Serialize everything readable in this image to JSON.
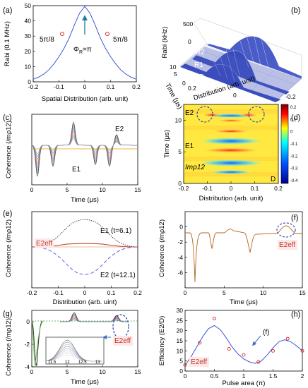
{
  "chart_data": [
    {
      "panel": "(a)",
      "type": "line",
      "ylabel": "Rabi (0.1 MHz)",
      "xlabel": "Spatial Distribution (arb. unit)",
      "xlim": [
        -0.2,
        0.2
      ],
      "ylim": [
        0,
        50
      ],
      "xticks": [
        "-0.2",
        "-0.1",
        "0",
        "0.1",
        "0.2"
      ],
      "yticks": [
        "0",
        "10",
        "20",
        "30",
        "40",
        "50"
      ],
      "series": [
        {
          "x": [
            -0.2,
            -0.18,
            -0.16,
            -0.14,
            -0.12,
            -0.1,
            -0.08,
            -0.06,
            -0.04,
            -0.02,
            0,
            0.02,
            0.04,
            0.06,
            0.08,
            0.1,
            0.12,
            0.14,
            0.16,
            0.18,
            0.2
          ],
          "values": [
            1.7,
            3.0,
            5.0,
            7.8,
            11.7,
            16.5,
            22.1,
            28.9,
            37.4,
            45.1,
            49.5,
            45.1,
            37.4,
            28.9,
            22.1,
            16.5,
            11.7,
            7.8,
            5.0,
            3.0,
            1.7
          ]
        }
      ],
      "markers": [
        {
          "x": -0.0875,
          "y": 31.5
        },
        {
          "x": 0.0875,
          "y": 31.5
        }
      ],
      "annotations": {
        "left": "5π/8",
        "right": "5π/8",
        "phi": "Φ",
        "phi_sub": "R",
        "phi_val": "=π"
      }
    },
    {
      "panel": "(b)",
      "type": "area",
      "ylabel": "Rabi (kHz)",
      "zlabel": "Time (μs)",
      "xlabel": "Distribution (arb. unit)",
      "yticks": [
        "0",
        "500"
      ],
      "zticks": [
        "0",
        "5",
        "10"
      ],
      "xticks": [
        "0.2",
        "0",
        "-0.2"
      ],
      "pulse_labels": [
        "R2",
        "R1",
        "D"
      ]
    },
    {
      "panel": "(c)",
      "type": "line",
      "ylabel": "Coherence (/mρ12)",
      "xlabel": "Time (μs)",
      "xlim": [
        0,
        15
      ],
      "ylim": [
        -4.5,
        3.5
      ],
      "xticks": [
        "0",
        "5",
        "10",
        "15"
      ],
      "labels": [
        "E1",
        "E2"
      ],
      "events": [
        {
          "t": 0.8,
          "amp": -3.5
        },
        {
          "t": 3.0,
          "amp": -2.4
        },
        {
          "t": 5.9,
          "amp": 2.6
        },
        {
          "t": 9.0,
          "amp": -2.2
        },
        {
          "t": 11.0,
          "amp": -2.4
        },
        {
          "t": 12.0,
          "amp": 1.2
        }
      ]
    },
    {
      "panel": "(d)",
      "type": "heatmap",
      "ylabel": "Time (μs)",
      "xlabel": "Distribution (arb. unit)",
      "xlim": [
        -0.2,
        0.2
      ],
      "ylim": [
        0,
        12.5
      ],
      "xticks": [
        "-0.2",
        "-0.1",
        "0",
        "0.1",
        "0.2"
      ],
      "yticks": [
        "0",
        "5",
        "10"
      ],
      "colorbar_ticks": [
        "0.2",
        "0.1",
        "0",
        "-0.1",
        "-0.2",
        "-0.3",
        "-0.4"
      ],
      "labels": [
        "E2",
        "E1",
        "Imρ12",
        "D"
      ]
    },
    {
      "panel": "(e)",
      "type": "line",
      "ylabel": "Coherence (/mρ12)",
      "xlabel": "Distribution (arb. uint)",
      "xlim": [
        -0.2,
        0.2
      ],
      "xticks": [
        "-0.2",
        "-0.1",
        "0",
        "0.1",
        "0.2"
      ],
      "series": [
        {
          "name": "E1 (t=6.1)",
          "style": "dotted"
        },
        {
          "name": "E2 (t=12.1)",
          "style": "dashed"
        },
        {
          "name": "E2eff",
          "style": "solid"
        }
      ]
    },
    {
      "panel": "(f)",
      "type": "line",
      "ylabel": "Coherence (/mρ12)",
      "xlabel": "Time (μs)",
      "xlim": [
        0,
        15
      ],
      "ylim": [
        -8,
        2
      ],
      "xticks": [
        "0",
        "5",
        "10",
        "15"
      ],
      "yticks": [
        "-6",
        "-4",
        "-2",
        "0"
      ],
      "label": "E2eff"
    },
    {
      "panel": "(g)",
      "type": "line",
      "ylabel": "Coherence (/mρ12)",
      "xlabel": "Time (μs)",
      "xlim": [
        0,
        15
      ],
      "ylim": [
        -4,
        1
      ],
      "xticks": [
        "0",
        "5",
        "10",
        "15"
      ],
      "yticks": [
        "-4",
        "-2",
        "0"
      ],
      "inset_xticks": [
        "11.5",
        "12",
        "12.5",
        "13"
      ],
      "label": "E2eff"
    },
    {
      "panel": "(h)",
      "type": "line",
      "ylabel": "Efficiency (E2/D)",
      "xlabel": "Pulse area (π)",
      "xlim": [
        0,
        2
      ],
      "ylim": [
        0,
        30
      ],
      "xticks": [
        "0",
        "0.5",
        "1",
        "1.5",
        "2"
      ],
      "yticks": [
        "0",
        "5",
        "10",
        "15",
        "20",
        "25",
        "30"
      ],
      "points": [
        {
          "x": 0.0,
          "y": 3
        },
        {
          "x": 0.25,
          "y": 14
        },
        {
          "x": 0.5,
          "y": 26
        },
        {
          "x": 0.75,
          "y": 11
        },
        {
          "x": 1.0,
          "y": 8
        },
        {
          "x": 1.25,
          "y": 4.5
        },
        {
          "x": 1.5,
          "y": 10
        },
        {
          "x": 1.75,
          "y": 16
        },
        {
          "x": 2.0,
          "y": 10
        }
      ],
      "fit": {
        "x": [
          0,
          0.1,
          0.2,
          0.3,
          0.4,
          0.5,
          0.6,
          0.7,
          0.8,
          0.9,
          1.0,
          1.1,
          1.2,
          1.3,
          1.4,
          1.5,
          1.6,
          1.7,
          1.8,
          1.9,
          2.0
        ],
        "values": [
          2.8,
          7,
          12,
          17,
          21,
          22.5,
          20.5,
          16.5,
          12,
          8.5,
          6,
          4.5,
          3.8,
          5,
          8,
          11.5,
          14.5,
          15.5,
          14.5,
          12.5,
          10
        ]
      },
      "labels": [
        "(f)",
        "E2eff"
      ]
    }
  ]
}
